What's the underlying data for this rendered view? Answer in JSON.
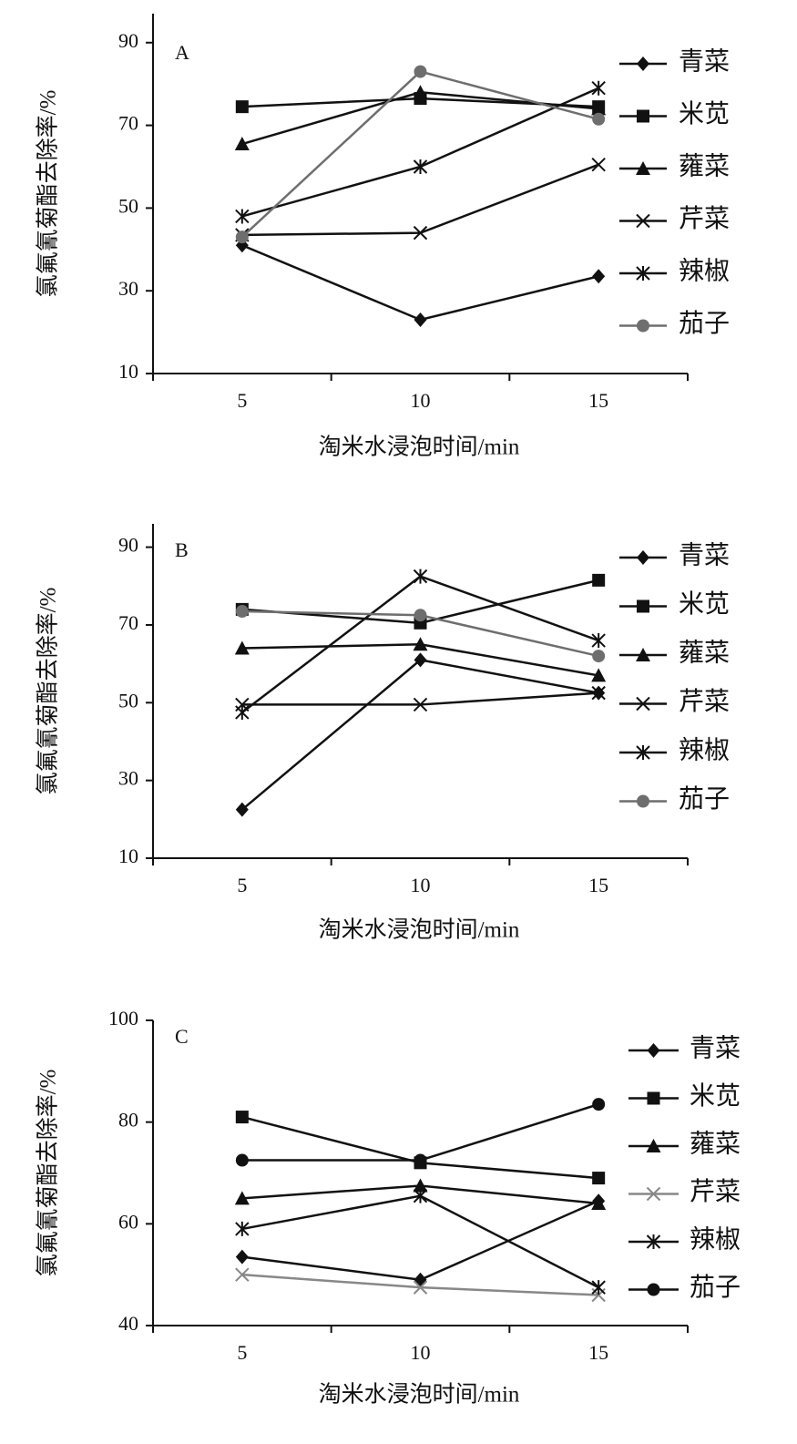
{
  "chart_data": [
    {
      "type": "line",
      "title": "A",
      "x_label": "淘米水浸泡时间/min",
      "y_label": "氯氟氰菊酯去除率/%",
      "categories": [
        "5",
        "10",
        "15"
      ],
      "ylim": [
        10,
        97
      ],
      "yticks": [
        10,
        30,
        50,
        70,
        90
      ],
      "legend": "right",
      "series": [
        {
          "name": "青菜",
          "color": "#111111",
          "marker": "diamond",
          "values": [
            41,
            23,
            33.5
          ]
        },
        {
          "name": "米苋",
          "color": "#111111",
          "marker": "square",
          "values": [
            74.5,
            76.5,
            74.5
          ]
        },
        {
          "name": "蕹菜",
          "color": "#111111",
          "marker": "triangle",
          "values": [
            65.5,
            78,
            74
          ]
        },
        {
          "name": "芹菜",
          "color": "#111111",
          "marker": "x",
          "values": [
            43.5,
            44,
            60.5
          ]
        },
        {
          "name": "辣椒",
          "color": "#111111",
          "marker": "asterisk",
          "values": [
            48,
            60,
            79
          ]
        },
        {
          "name": "茄子",
          "color": "#6e6e6e",
          "marker": "circle",
          "values": [
            43,
            83,
            71.5
          ]
        }
      ]
    },
    {
      "type": "line",
      "title": "B",
      "x_label": "淘米水浸泡时间/min",
      "y_label": "氯氟氰菊酯去除率/%",
      "categories": [
        "5",
        "10",
        "15"
      ],
      "ylim": [
        10,
        96
      ],
      "yticks": [
        10,
        30,
        50,
        70,
        90
      ],
      "legend": "right",
      "series": [
        {
          "name": "青菜",
          "color": "#111111",
          "marker": "diamond",
          "values": [
            22.5,
            61,
            52.5
          ]
        },
        {
          "name": "米苋",
          "color": "#111111",
          "marker": "square",
          "values": [
            74,
            70.5,
            81.5
          ]
        },
        {
          "name": "蕹菜",
          "color": "#111111",
          "marker": "triangle",
          "values": [
            64,
            65,
            57
          ]
        },
        {
          "name": "芹菜",
          "color": "#111111",
          "marker": "x",
          "values": [
            49.5,
            49.5,
            52.5
          ]
        },
        {
          "name": "辣椒",
          "color": "#111111",
          "marker": "asterisk",
          "values": [
            47.5,
            82.5,
            66
          ]
        },
        {
          "name": "茄子",
          "color": "#6e6e6e",
          "marker": "circle",
          "values": [
            73.5,
            72.5,
            62
          ]
        }
      ]
    },
    {
      "type": "line",
      "title": "C",
      "x_label": "淘米水浸泡时间/min",
      "y_label": "氯氟氰菊酯去除率/%",
      "categories": [
        "5",
        "10",
        "15"
      ],
      "ylim": [
        40,
        100
      ],
      "yticks": [
        40,
        60,
        80,
        100
      ],
      "legend": "right",
      "series": [
        {
          "name": "青菜",
          "color": "#111111",
          "marker": "diamond",
          "values": [
            53.5,
            49,
            64.5
          ]
        },
        {
          "name": "米苋",
          "color": "#111111",
          "marker": "square",
          "values": [
            81,
            72,
            69
          ]
        },
        {
          "name": "蕹菜",
          "color": "#111111",
          "marker": "triangle",
          "values": [
            65,
            67.5,
            64
          ]
        },
        {
          "name": "芹菜",
          "color": "#888888",
          "marker": "x",
          "values": [
            50,
            47.5,
            46
          ]
        },
        {
          "name": "辣椒",
          "color": "#111111",
          "marker": "asterisk",
          "values": [
            59,
            65.5,
            47.5
          ]
        },
        {
          "name": "茄子",
          "color": "#111111",
          "marker": "circle",
          "values": [
            72.5,
            72.5,
            83.5
          ]
        }
      ]
    }
  ]
}
